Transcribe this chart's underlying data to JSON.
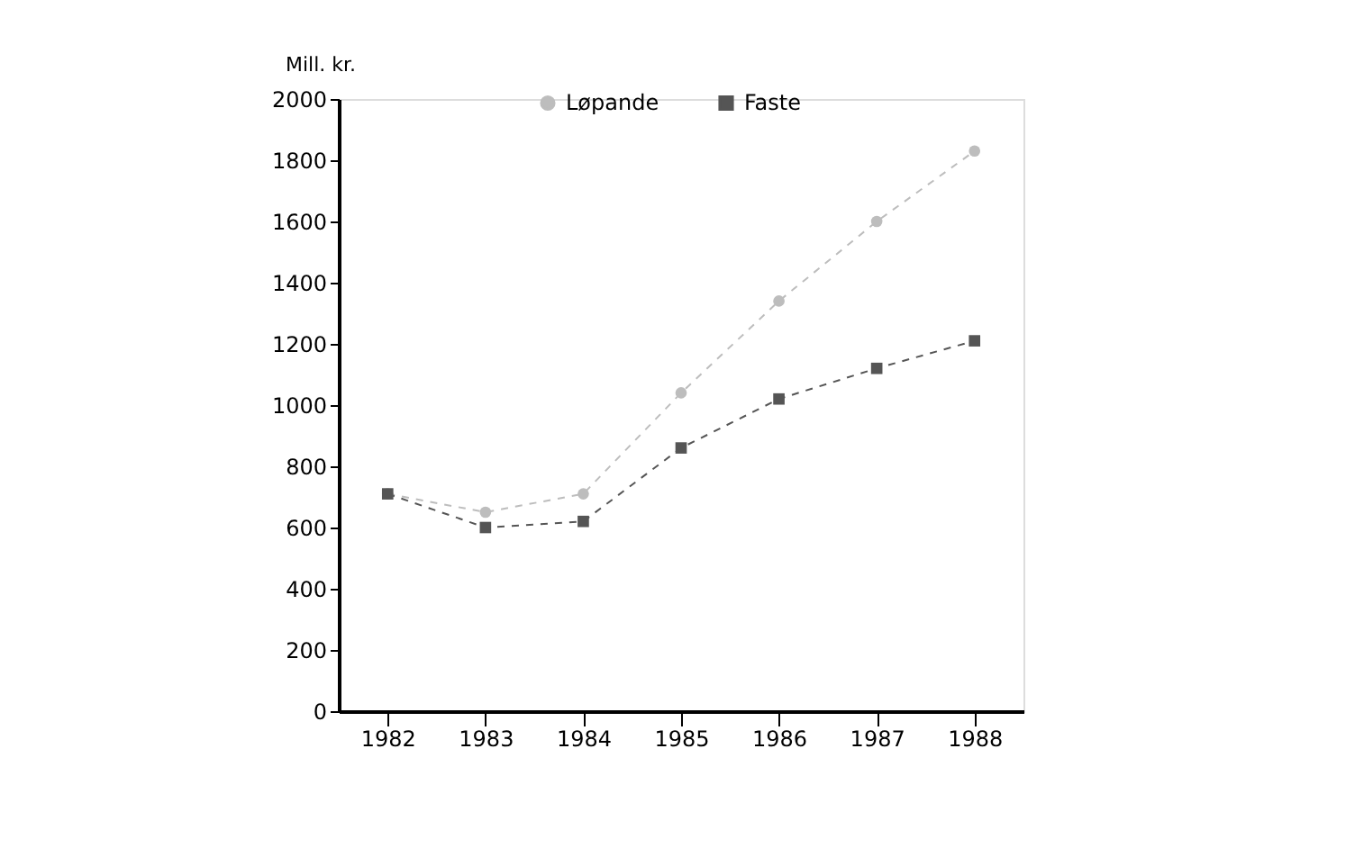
{
  "chart_data": {
    "type": "line",
    "ylabel": "Mill. kr.",
    "categories": [
      "1982",
      "1983",
      "1984",
      "1985",
      "1986",
      "1987",
      "1988"
    ],
    "series": [
      {
        "name": "Løpande",
        "color": "#bdbdbd",
        "values": [
          710,
          650,
          710,
          1040,
          1340,
          1600,
          1830
        ]
      },
      {
        "name": "Faste",
        "color": "#555555",
        "marker": "square",
        "values": [
          710,
          600,
          620,
          860,
          1020,
          1120,
          1210
        ]
      }
    ],
    "ylim": [
      0,
      2000
    ],
    "yticks": [
      0,
      200,
      400,
      600,
      800,
      1000,
      1200,
      1400,
      1600,
      1800,
      2000
    ],
    "grid": false,
    "legend": "top",
    "marker": "circle",
    "line_style": "dashed"
  }
}
